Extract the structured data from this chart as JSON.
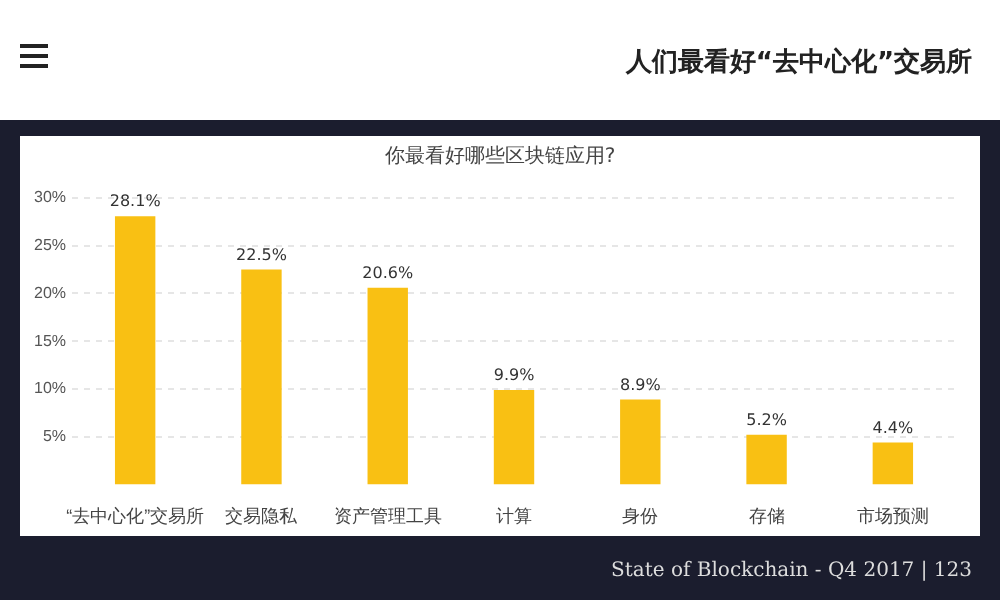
{
  "chart_data": {
    "type": "bar",
    "title": "人们最看好“去中心化”交易所",
    "subtitle": "你最看好哪些区块链应用?",
    "categories": [
      "“去中心化”交易所",
      "交易隐私",
      "资产管理工具",
      "计算",
      "身份",
      "存储",
      "市场预测"
    ],
    "values": [
      28.1,
      22.5,
      20.6,
      9.9,
      8.9,
      5.2,
      4.4
    ],
    "value_labels": [
      "28.1%",
      "22.5%",
      "20.6%",
      "9.9%",
      "8.9%",
      "5.2%",
      "4.4%"
    ],
    "color": "#f9c013",
    "ylim": [
      0,
      30
    ],
    "yticks": [
      {
        "value": 5,
        "label": "5%"
      },
      {
        "value": 10,
        "label": "10%"
      },
      {
        "value": 15,
        "label": "15%"
      },
      {
        "value": 20,
        "label": "20%"
      },
      {
        "value": 25,
        "label": "25%"
      },
      {
        "value": 30,
        "label": "30%"
      }
    ],
    "grid": "y",
    "annotations": [
      "State of Blockchain - Q4 2017 | 123"
    ]
  }
}
